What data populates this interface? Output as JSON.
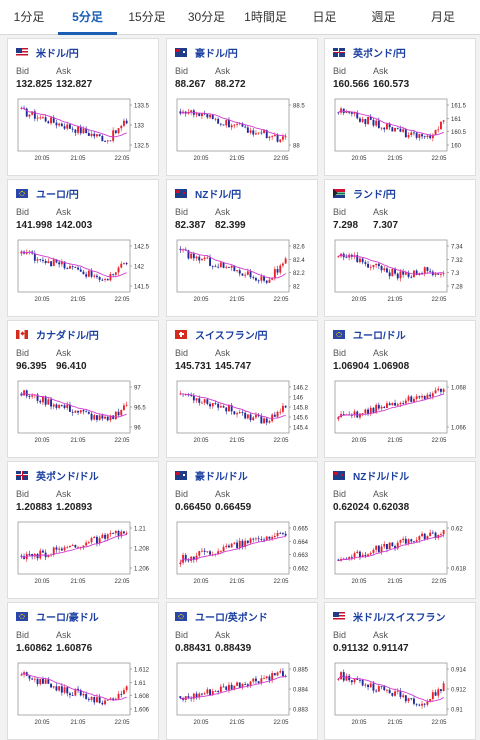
{
  "tabs": [
    {
      "label": "1分足"
    },
    {
      "label": "5分足"
    },
    {
      "label": "15分足"
    },
    {
      "label": "30分足"
    },
    {
      "label": "1時間足"
    },
    {
      "label": "日足"
    },
    {
      "label": "週足"
    },
    {
      "label": "月足"
    }
  ],
  "active_tab": 1,
  "labels": {
    "bid": "Bid",
    "ask": "Ask"
  },
  "colors": {
    "up": "#e8222a",
    "down": "#1f2a9c",
    "ma": "#d33bd3",
    "link": "#1a3fa0",
    "active_tab": "#1a5fb4"
  },
  "cards": [
    {
      "pair": "米ドル/円",
      "bid": "132.825",
      "ask": "132.827",
      "flag": "flag-us-icon"
    },
    {
      "pair": "豪ドル/円",
      "bid": "88.267",
      "ask": "88.272",
      "flag": "flag-au-icon"
    },
    {
      "pair": "英ポンド/円",
      "bid": "160.566",
      "ask": "160.573",
      "flag": "flag-gb-icon"
    },
    {
      "pair": "ユーロ/円",
      "bid": "141.998",
      "ask": "142.003",
      "flag": "flag-eu-icon"
    },
    {
      "pair": "NZドル/円",
      "bid": "82.387",
      "ask": "82.399",
      "flag": "flag-nz-icon"
    },
    {
      "pair": "ランド/円",
      "bid": "7.298",
      "ask": "7.307",
      "flag": "flag-za-icon"
    },
    {
      "pair": "カナダドル/円",
      "bid": "96.395",
      "ask": "96.410",
      "flag": "flag-ca-icon"
    },
    {
      "pair": "スイスフラン/円",
      "bid": "145.731",
      "ask": "145.747",
      "flag": "flag-ch-icon"
    },
    {
      "pair": "ユーロ/ドル",
      "bid": "1.06904",
      "ask": "1.06908",
      "flag": "flag-eu-icon"
    },
    {
      "pair": "英ポンド/ドル",
      "bid": "1.20883",
      "ask": "1.20893",
      "flag": "flag-gb-icon"
    },
    {
      "pair": "豪ドル/ドル",
      "bid": "0.66450",
      "ask": "0.66459",
      "flag": "flag-au-icon"
    },
    {
      "pair": "NZドル/ドル",
      "bid": "0.62024",
      "ask": "0.62038",
      "flag": "flag-nz-icon"
    },
    {
      "pair": "ユーロ/豪ドル",
      "bid": "1.60862",
      "ask": "1.60876",
      "flag": "flag-eu-icon"
    },
    {
      "pair": "ユーロ/英ポンド",
      "bid": "0.88431",
      "ask": "0.88439",
      "flag": "flag-eu-icon"
    },
    {
      "pair": "米ドル/スイスフラン",
      "bid": "0.91132",
      "ask": "0.91147",
      "flag": "flag-us-icon"
    }
  ],
  "chart_data": [
    {
      "type": "candlestick",
      "trend": "down-recover",
      "x_ticks": [
        "20:05",
        "21:05",
        "22:05"
      ],
      "y_ticks": [
        "133.5",
        "133",
        "132.5"
      ],
      "ylim": [
        132.3,
        133.7
      ]
    },
    {
      "type": "candlestick",
      "trend": "down",
      "x_ticks": [
        "20:05",
        "21:05",
        "22:05"
      ],
      "y_ticks": [
        "88.5",
        "88"
      ],
      "ylim": [
        87.9,
        88.8
      ]
    },
    {
      "type": "candlestick",
      "trend": "down-recover",
      "x_ticks": [
        "20:05",
        "21:05",
        "22:05"
      ],
      "y_ticks": [
        "161.5",
        "161",
        "160.5",
        "160"
      ],
      "ylim": [
        159.9,
        161.6
      ]
    },
    {
      "type": "candlestick",
      "trend": "down-recover",
      "x_ticks": [
        "20:05",
        "21:05",
        "22:05"
      ],
      "y_ticks": [
        "142.5",
        "142",
        "141.5"
      ],
      "ylim": [
        141.4,
        142.7
      ]
    },
    {
      "type": "candlestick",
      "trend": "down-recover",
      "x_ticks": [
        "20:05",
        "21:05",
        "22:05"
      ],
      "y_ticks": [
        "82.6",
        "82.4",
        "82.2",
        "82"
      ],
      "ylim": [
        81.95,
        82.65
      ]
    },
    {
      "type": "candlestick",
      "trend": "down-flat",
      "x_ticks": [
        "20:05",
        "21:05",
        "22:05"
      ],
      "y_ticks": [
        "7.34",
        "7.32",
        "7.3",
        "7.28"
      ],
      "ylim": [
        7.27,
        7.35
      ]
    },
    {
      "type": "candlestick",
      "trend": "down-recover",
      "x_ticks": [
        "20:05",
        "21:05",
        "22:05"
      ],
      "y_ticks": [
        "97",
        "96.5",
        "96"
      ],
      "ylim": [
        95.8,
        97.2
      ]
    },
    {
      "type": "candlestick",
      "trend": "down-recover",
      "x_ticks": [
        "20:05",
        "21:05",
        "22:05"
      ],
      "y_ticks": [
        "146.2",
        "146",
        "145.8",
        "145.6",
        "145.4"
      ],
      "ylim": [
        145.3,
        146.3
      ]
    },
    {
      "type": "candlestick",
      "trend": "up",
      "x_ticks": [
        "20:05",
        "21:05",
        "22:05"
      ],
      "y_ticks": [
        "1.068",
        "1.066"
      ],
      "ylim": [
        1.0652,
        1.0705
      ]
    },
    {
      "type": "candlestick",
      "trend": "up",
      "x_ticks": [
        "20:05",
        "21:05",
        "22:05"
      ],
      "y_ticks": [
        "1.21",
        "1.208",
        "1.206"
      ],
      "ylim": [
        1.205,
        1.2105
      ]
    },
    {
      "type": "candlestick",
      "trend": "up",
      "x_ticks": [
        "20:05",
        "21:05",
        "22:05"
      ],
      "y_ticks": [
        "0.665",
        "0.664",
        "0.663",
        "0.662"
      ],
      "ylim": [
        0.6615,
        0.6652
      ]
    },
    {
      "type": "candlestick",
      "trend": "up",
      "x_ticks": [
        "20:05",
        "21:05",
        "22:05"
      ],
      "y_ticks": [
        "0.62",
        "0.618"
      ],
      "ylim": [
        0.6165,
        0.6207
      ]
    },
    {
      "type": "candlestick",
      "trend": "down-recover",
      "x_ticks": [
        "20:05",
        "21:05",
        "22:05"
      ],
      "y_ticks": [
        "1.612",
        "1.61",
        "1.608",
        "1.606"
      ],
      "ylim": [
        1.605,
        1.613
      ]
    },
    {
      "type": "candlestick",
      "trend": "up",
      "x_ticks": [
        "20:05",
        "21:05",
        "22:05"
      ],
      "y_ticks": [
        "0.885",
        "0.884",
        "0.883"
      ],
      "ylim": [
        0.8825,
        0.8855
      ]
    },
    {
      "type": "candlestick",
      "trend": "down-recover",
      "x_ticks": [
        "20:05",
        "21:05",
        "22:05"
      ],
      "y_ticks": [
        "0.914",
        "0.912",
        "0.91"
      ],
      "ylim": [
        0.9095,
        0.9155
      ]
    }
  ]
}
